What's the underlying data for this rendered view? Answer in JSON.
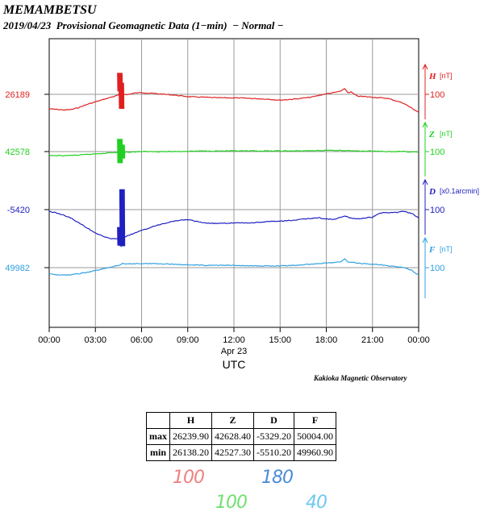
{
  "header": {
    "station": "MEMAMBETSU",
    "subtitle": "2019/04/23  Provisional Geomagnetic Data (1−min)  − Normal −"
  },
  "chart_data": {
    "type": "line",
    "x_ticks": [
      "00:00",
      "03:00",
      "06:00",
      "09:00",
      "12:00",
      "15:00",
      "18:00",
      "21:00",
      "00:00"
    ],
    "x_date_label": "Apr 23",
    "xlabel": "UTC",
    "xlim_hours": [
      0,
      24
    ],
    "series": [
      {
        "name": "H",
        "unit": "[nT]",
        "scale_label": "100",
        "baseline_label": "26189",
        "color": "#e02020",
        "points": [
          [
            0,
            25
          ],
          [
            0.5,
            26
          ],
          [
            1.0,
            27
          ],
          [
            1.5,
            26
          ],
          [
            2.0,
            22
          ],
          [
            2.5,
            17
          ],
          [
            3.0,
            13
          ],
          [
            3.5,
            9
          ],
          [
            4.0,
            5
          ],
          [
            4.3,
            3
          ],
          [
            4.5,
            1
          ],
          [
            4.6,
            -5
          ],
          [
            4.65,
            5
          ],
          [
            4.7,
            -8
          ],
          [
            4.75,
            3
          ],
          [
            4.8,
            -2
          ],
          [
            5.0,
            1
          ],
          [
            5.5,
            -2
          ],
          [
            6.0,
            -3
          ],
          [
            6.5,
            -2
          ],
          [
            7.0,
            -1
          ],
          [
            8.0,
            1
          ],
          [
            9.0,
            4
          ],
          [
            10.0,
            5
          ],
          [
            11.0,
            6
          ],
          [
            12.0,
            6
          ],
          [
            13.0,
            7
          ],
          [
            14.0,
            8
          ],
          [
            15.0,
            10
          ],
          [
            16.0,
            8
          ],
          [
            17.0,
            5
          ],
          [
            17.5,
            2
          ],
          [
            18.0,
            -1
          ],
          [
            18.5,
            -3
          ],
          [
            19.0,
            -6
          ],
          [
            19.2,
            -10
          ],
          [
            19.4,
            -3
          ],
          [
            19.6,
            -4
          ],
          [
            20.0,
            3
          ],
          [
            20.5,
            4
          ],
          [
            21.0,
            5
          ],
          [
            22.0,
            7
          ],
          [
            23.0,
            15
          ],
          [
            23.5,
            23
          ],
          [
            24.0,
            31
          ]
        ],
        "spikes": [
          {
            "hour": 4.6,
            "min": -37,
            "max": -5
          },
          {
            "hour": 4.7,
            "min": -20,
            "max": 25
          }
        ]
      },
      {
        "name": "Z",
        "unit": "[nT]",
        "scale_label": "100",
        "baseline_label": "42578",
        "color": "#20d020",
        "points": [
          [
            0,
            7
          ],
          [
            1.0,
            7
          ],
          [
            2.0,
            6
          ],
          [
            3.0,
            4
          ],
          [
            4.0,
            2
          ],
          [
            5.0,
            1
          ],
          [
            6.0,
            0
          ],
          [
            8.0,
            0
          ],
          [
            10.0,
            -1
          ],
          [
            12.0,
            -1
          ],
          [
            14.0,
            -1
          ],
          [
            16.0,
            -1
          ],
          [
            18.0,
            -2
          ],
          [
            19.0,
            -2
          ],
          [
            20.0,
            -1
          ],
          [
            21.0,
            -1
          ],
          [
            22.0,
            0
          ],
          [
            23.0,
            0
          ],
          [
            24.0,
            1
          ]
        ],
        "spikes": [
          {
            "hour": 4.6,
            "min": -22,
            "max": 20
          },
          {
            "hour": 4.75,
            "min": -12,
            "max": 12
          }
        ]
      },
      {
        "name": "D",
        "unit": "[x0.1arcmin]",
        "scale_label": "100",
        "baseline_label": "-5420",
        "color": "#2020c0",
        "points": [
          [
            0,
            3
          ],
          [
            0.5,
            6
          ],
          [
            1.0,
            10
          ],
          [
            1.5,
            16
          ],
          [
            2.0,
            24
          ],
          [
            2.5,
            32
          ],
          [
            3.0,
            40
          ],
          [
            3.5,
            46
          ],
          [
            4.0,
            50
          ],
          [
            4.5,
            51
          ],
          [
            4.55,
            55
          ],
          [
            4.6,
            62
          ],
          [
            4.7,
            63
          ],
          [
            4.75,
            -35
          ],
          [
            4.8,
            50
          ],
          [
            5.0,
            46
          ],
          [
            5.5,
            41
          ],
          [
            6.0,
            36
          ],
          [
            7.0,
            27
          ],
          [
            8.0,
            20
          ],
          [
            9.0,
            17
          ],
          [
            10.0,
            23
          ],
          [
            11.0,
            24
          ],
          [
            12.0,
            23
          ],
          [
            13.0,
            23
          ],
          [
            14.0,
            21
          ],
          [
            15.0,
            20
          ],
          [
            16.0,
            18
          ],
          [
            17.0,
            15
          ],
          [
            17.5,
            14
          ],
          [
            18.0,
            16
          ],
          [
            18.5,
            17
          ],
          [
            19.0,
            13
          ],
          [
            19.2,
            11
          ],
          [
            19.5,
            14
          ],
          [
            20.0,
            16
          ],
          [
            21.0,
            13
          ],
          [
            21.5,
            6
          ],
          [
            22.0,
            5
          ],
          [
            22.5,
            5
          ],
          [
            23.0,
            3
          ],
          [
            23.5,
            6
          ],
          [
            24.0,
            14
          ]
        ],
        "spikes": [
          {
            "hour": 4.75,
            "min": -35,
            "max": 63
          },
          {
            "hour": 4.6,
            "min": 30,
            "max": 62
          }
        ]
      },
      {
        "name": "F",
        "unit": "[nT]",
        "scale_label": "100",
        "baseline_label": "49982",
        "color": "#30a0e0",
        "points": [
          [
            0,
            11
          ],
          [
            0.5,
            12
          ],
          [
            1.0,
            13
          ],
          [
            1.5,
            12
          ],
          [
            2.0,
            10
          ],
          [
            2.5,
            8
          ],
          [
            3.0,
            5
          ],
          [
            3.5,
            2
          ],
          [
            4.0,
            -1
          ],
          [
            4.5,
            -4
          ],
          [
            4.75,
            -7
          ],
          [
            5.0,
            -6
          ],
          [
            5.5,
            -7
          ],
          [
            6.0,
            -7
          ],
          [
            7.0,
            -7
          ],
          [
            8.0,
            -6
          ],
          [
            9.0,
            -5
          ],
          [
            10.0,
            -4
          ],
          [
            11.0,
            -4
          ],
          [
            12.0,
            -4
          ],
          [
            13.0,
            -3
          ],
          [
            14.0,
            -3
          ],
          [
            15.0,
            -3
          ],
          [
            16.0,
            -4
          ],
          [
            17.0,
            -6
          ],
          [
            18.0,
            -8
          ],
          [
            18.5,
            -9
          ],
          [
            19.0,
            -11
          ],
          [
            19.2,
            -15
          ],
          [
            19.4,
            -10
          ],
          [
            20.0,
            -8
          ],
          [
            20.5,
            -7
          ],
          [
            21.0,
            -6
          ],
          [
            21.5,
            -5
          ],
          [
            22.0,
            -3
          ],
          [
            22.5,
            -2
          ],
          [
            23.0,
            0
          ],
          [
            23.5,
            4
          ],
          [
            24.0,
            13
          ]
        ],
        "spikes": []
      }
    ],
    "credit": "Kakioka Magnetic Observatory"
  },
  "stats_table": {
    "headers": [
      "",
      "H",
      "Z",
      "D",
      "F"
    ],
    "rows": [
      {
        "label": "max",
        "values": [
          "26239.90",
          "42628.40",
          "-5329.20",
          "50004.00"
        ]
      },
      {
        "label": "min",
        "values": [
          "26138.20",
          "42527.30",
          "-5510.20",
          "49960.90"
        ]
      }
    ]
  },
  "annotations": [
    {
      "text": "100",
      "color": "#f08080"
    },
    {
      "text": "180",
      "color": "#4a8cd8"
    },
    {
      "text": "100",
      "color": "#70e070"
    },
    {
      "text": "40",
      "color": "#70c8f0"
    }
  ]
}
